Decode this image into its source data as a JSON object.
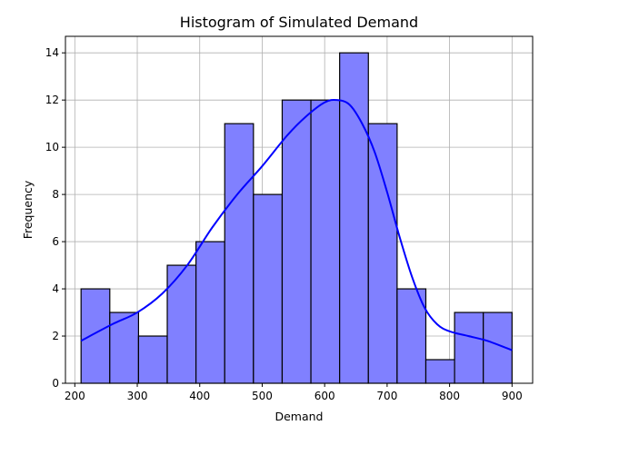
{
  "chart_data": {
    "type": "bar",
    "title": "Histogram of Simulated Demand",
    "xlabel": "Demand",
    "ylabel": "Frequency",
    "xlim": [
      185,
      933
    ],
    "ylim": [
      0,
      14.7
    ],
    "xticks": [
      200,
      300,
      400,
      500,
      600,
      700,
      800,
      900
    ],
    "yticks": [
      0,
      2,
      4,
      6,
      8,
      10,
      12,
      14
    ],
    "grid": true,
    "bin_edges": [
      210,
      256,
      302,
      348,
      394,
      440,
      486,
      532,
      578,
      624,
      670,
      716,
      762,
      808,
      854,
      900
    ],
    "values": [
      4,
      3,
      2,
      5,
      6,
      11,
      8,
      12,
      12,
      14,
      11,
      4,
      1,
      3,
      3
    ],
    "bar_color": "#8080ff",
    "bar_edge_color": "#000000",
    "kde": {
      "color": "#0000ff",
      "x": [
        210,
        260,
        300,
        340,
        380,
        420,
        460,
        500,
        540,
        570,
        600,
        620,
        640,
        660,
        680,
        700,
        720,
        740,
        760,
        780,
        800,
        830,
        860,
        900
      ],
      "y": [
        1.8,
        2.5,
        3.0,
        3.8,
        5.0,
        6.6,
        8.0,
        9.2,
        10.5,
        11.3,
        11.9,
        12.0,
        11.8,
        11.0,
        9.8,
        8.1,
        6.2,
        4.5,
        3.2,
        2.5,
        2.2,
        2.0,
        1.8,
        1.4
      ]
    }
  }
}
